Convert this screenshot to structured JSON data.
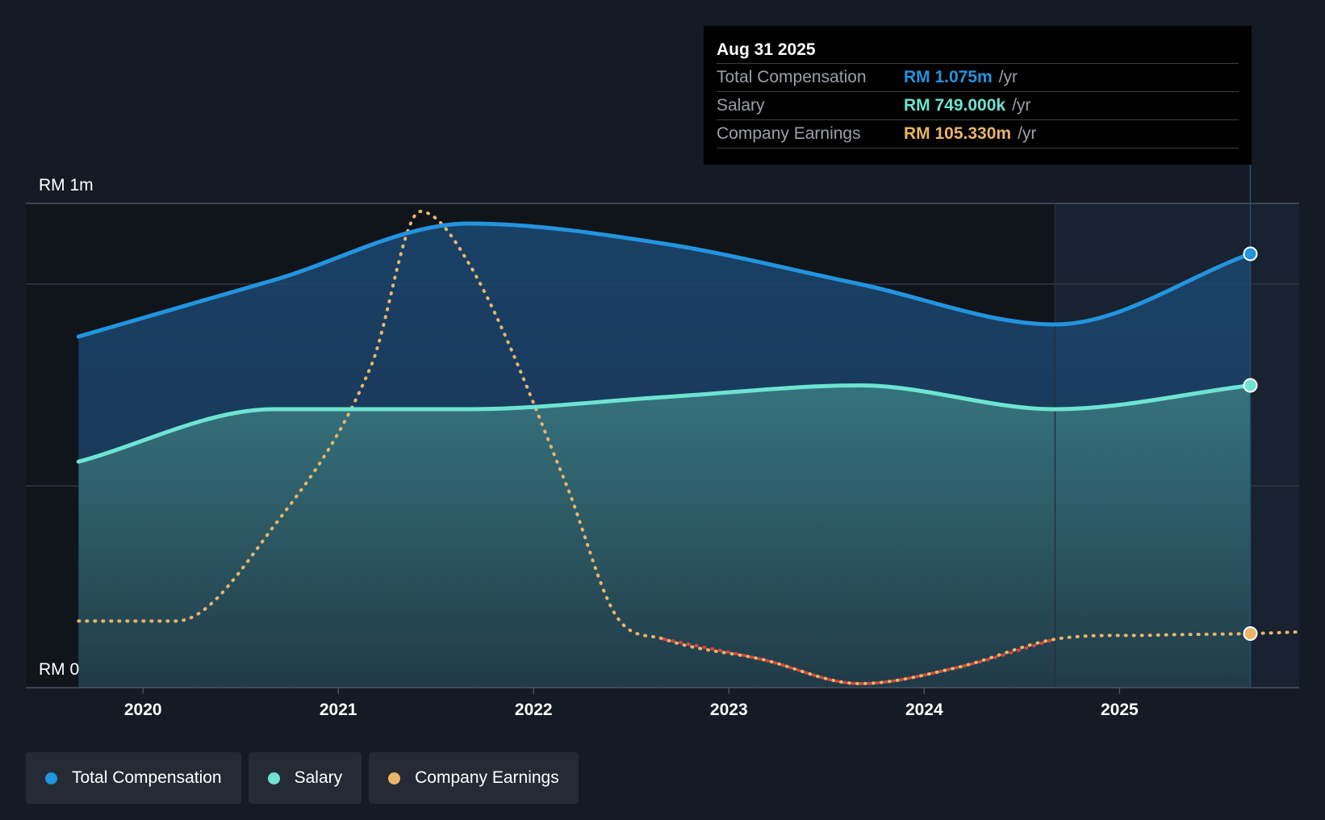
{
  "colors": {
    "background": "#151b24",
    "total_compensation": "#2394df",
    "salary": "#6de4d2",
    "company_earnings": "#e9b568",
    "earnings_negative": "#e5403f",
    "grid": "#3a4350"
  },
  "tooltip": {
    "date": "Aug 31 2025",
    "rows": [
      {
        "label": "Total Compensation",
        "value": "RM 1.075m",
        "unit": "/yr"
      },
      {
        "label": "Salary",
        "value": "RM 749.000k",
        "unit": "/yr"
      },
      {
        "label": "Company Earnings",
        "value": "RM 105.330m",
        "unit": "/yr"
      }
    ]
  },
  "legend": {
    "items": [
      {
        "label": "Total Compensation",
        "color": "#2394df"
      },
      {
        "label": "Salary",
        "color": "#6de4d2"
      },
      {
        "label": "Company Earnings",
        "color": "#e9b568"
      }
    ]
  },
  "chart_data": {
    "type": "area",
    "title": "",
    "xlabel": "",
    "ylabel": "",
    "y_axis_labels": [
      "RM 1m",
      "RM 0"
    ],
    "ylim": [
      0,
      1.2
    ],
    "xlim": [
      2019.4,
      2025.92
    ],
    "x_ticks": [
      "2020",
      "2021",
      "2022",
      "2023",
      "2024",
      "2025"
    ],
    "forecast_start_x": 2024.67,
    "series": [
      {
        "name": "Total Compensation",
        "unit": "RM m",
        "x": [
          2019.67,
          2020.67,
          2021.67,
          2022.67,
          2023.67,
          2024.67,
          2025.67
        ],
        "values": [
          0.87,
          1.01,
          1.15,
          1.1,
          1.0,
          0.9,
          1.075
        ]
      },
      {
        "name": "Salary",
        "unit": "RM m",
        "x": [
          2019.67,
          2020.67,
          2021.67,
          2022.67,
          2023.67,
          2024.67,
          2025.67
        ],
        "values": [
          0.56,
          0.69,
          0.69,
          0.72,
          0.749,
          0.69,
          0.749
        ]
      },
      {
        "name": "Company Earnings",
        "unit": "scaled",
        "x": [
          2019.67,
          2020.17,
          2020.67,
          2021.17,
          2021.42,
          2021.67,
          2022.17,
          2022.42,
          2022.67,
          2023.17,
          2023.67,
          2024.17,
          2024.67,
          2025.17,
          2025.67
        ],
        "values": [
          0.165,
          0.165,
          0.4,
          0.8,
          1.18,
          1.05,
          0.5,
          0.18,
          0.12,
          0.07,
          0.01,
          0.05,
          0.12,
          0.13,
          0.134
        ]
      }
    ]
  }
}
